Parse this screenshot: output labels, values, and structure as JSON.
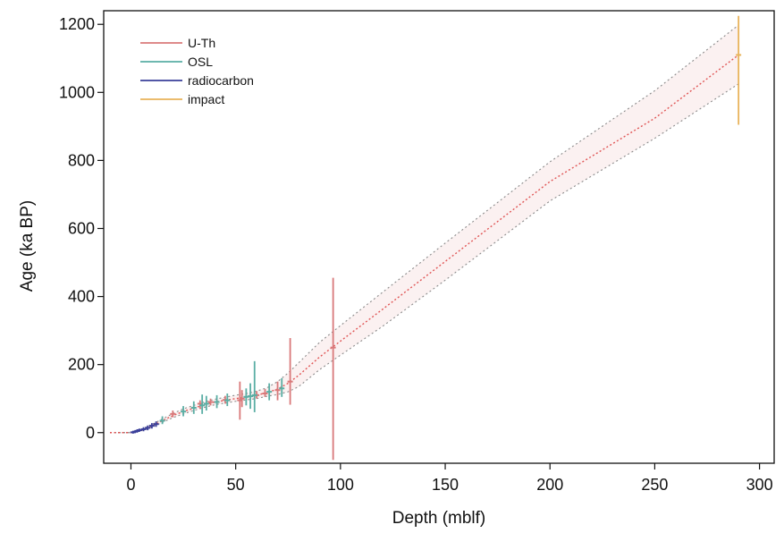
{
  "chart_data": {
    "type": "line",
    "xlabel": "Depth (mblf)",
    "ylabel": "Age (ka BP)",
    "xlim": [
      -13,
      307
    ],
    "ylim": [
      -90,
      1240
    ],
    "xticks": [
      0,
      50,
      100,
      150,
      200,
      250,
      300
    ],
    "yticks": [
      0,
      200,
      400,
      600,
      800,
      1000,
      1200
    ],
    "grid": false,
    "legend_position": "top-left",
    "legend": [
      {
        "label": "U-Th",
        "color": "#d9797a"
      },
      {
        "label": "OSL",
        "color": "#5aaea4"
      },
      {
        "label": "radiocarbon",
        "color": "#3a3f9a"
      },
      {
        "label": "impact",
        "color": "#e8b35a"
      }
    ],
    "model": {
      "median": [
        [
          -10,
          0
        ],
        [
          0,
          0
        ],
        [
          5,
          8
        ],
        [
          10,
          20
        ],
        [
          15,
          35
        ],
        [
          20,
          50
        ],
        [
          25,
          62
        ],
        [
          30,
          72
        ],
        [
          35,
          82
        ],
        [
          40,
          90
        ],
        [
          45,
          95
        ],
        [
          50,
          100
        ],
        [
          55,
          105
        ],
        [
          60,
          110
        ],
        [
          65,
          118
        ],
        [
          70,
          128
        ],
        [
          75,
          145
        ],
        [
          80,
          168
        ],
        [
          85,
          195
        ],
        [
          90,
          222
        ],
        [
          97,
          255
        ],
        [
          120,
          362
        ],
        [
          150,
          503
        ],
        [
          200,
          738
        ],
        [
          250,
          924
        ],
        [
          290,
          1110
        ]
      ],
      "upper": [
        [
          -10,
          0
        ],
        [
          0,
          0
        ],
        [
          5,
          10
        ],
        [
          10,
          24
        ],
        [
          15,
          40
        ],
        [
          20,
          56
        ],
        [
          25,
          70
        ],
        [
          30,
          80
        ],
        [
          35,
          90
        ],
        [
          40,
          98
        ],
        [
          45,
          104
        ],
        [
          50,
          110
        ],
        [
          55,
          115
        ],
        [
          60,
          122
        ],
        [
          65,
          132
        ],
        [
          70,
          150
        ],
        [
          75,
          175
        ],
        [
          80,
          205
        ],
        [
          85,
          235
        ],
        [
          90,
          265
        ],
        [
          97,
          300
        ],
        [
          120,
          412
        ],
        [
          150,
          557
        ],
        [
          200,
          796
        ],
        [
          250,
          1005
        ],
        [
          290,
          1198
        ]
      ],
      "lower": [
        [
          -10,
          0
        ],
        [
          0,
          0
        ],
        [
          5,
          6
        ],
        [
          10,
          16
        ],
        [
          15,
          30
        ],
        [
          20,
          44
        ],
        [
          25,
          55
        ],
        [
          30,
          65
        ],
        [
          35,
          74
        ],
        [
          40,
          82
        ],
        [
          45,
          87
        ],
        [
          50,
          92
        ],
        [
          55,
          96
        ],
        [
          60,
          100
        ],
        [
          65,
          107
        ],
        [
          70,
          112
        ],
        [
          75,
          120
        ],
        [
          80,
          135
        ],
        [
          85,
          160
        ],
        [
          90,
          185
        ],
        [
          97,
          215
        ],
        [
          120,
          312
        ],
        [
          150,
          448
        ],
        [
          200,
          681
        ],
        [
          250,
          865
        ],
        [
          290,
          1025
        ]
      ]
    },
    "series": [
      {
        "name": "U-Th",
        "color": "#d9797a",
        "points": [
          {
            "x": 52,
            "y": 95,
            "low": 38,
            "high": 150
          },
          {
            "x": 53,
            "y": 100,
            "low": 75,
            "high": 125
          },
          {
            "x": 70,
            "y": 125,
            "low": 95,
            "high": 150
          },
          {
            "x": 76,
            "y": 150,
            "low": 82,
            "high": 278
          },
          {
            "x": 96.5,
            "y": 250,
            "low": -80,
            "high": 455
          },
          {
            "x": 33,
            "y": 85,
            "low": 70,
            "high": 95
          },
          {
            "x": 38,
            "y": 90,
            "low": 80,
            "high": 100
          },
          {
            "x": 20,
            "y": 55,
            "low": 45,
            "high": 65
          },
          {
            "x": 45,
            "y": 96,
            "low": 85,
            "high": 108
          },
          {
            "x": 60,
            "y": 110,
            "low": 100,
            "high": 122
          },
          {
            "x": 64,
            "y": 115,
            "low": 105,
            "high": 128
          }
        ]
      },
      {
        "name": "OSL",
        "color": "#5aaea4",
        "points": [
          {
            "x": 15,
            "y": 35,
            "low": 25,
            "high": 48
          },
          {
            "x": 25,
            "y": 62,
            "low": 48,
            "high": 78
          },
          {
            "x": 30,
            "y": 73,
            "low": 55,
            "high": 92
          },
          {
            "x": 34,
            "y": 80,
            "low": 55,
            "high": 112
          },
          {
            "x": 36,
            "y": 85,
            "low": 65,
            "high": 108
          },
          {
            "x": 41,
            "y": 90,
            "low": 72,
            "high": 110
          },
          {
            "x": 46,
            "y": 95,
            "low": 78,
            "high": 115
          },
          {
            "x": 55,
            "y": 105,
            "low": 80,
            "high": 130
          },
          {
            "x": 57,
            "y": 107,
            "low": 70,
            "high": 145
          },
          {
            "x": 59,
            "y": 110,
            "low": 60,
            "high": 210
          },
          {
            "x": 66,
            "y": 120,
            "low": 95,
            "high": 145
          },
          {
            "x": 72,
            "y": 130,
            "low": 105,
            "high": 160
          }
        ]
      },
      {
        "name": "radiocarbon",
        "color": "#3a3f9a",
        "points": [
          {
            "x": 1,
            "y": 1,
            "low": -3,
            "high": 5
          },
          {
            "x": 2,
            "y": 3,
            "low": -1,
            "high": 7
          },
          {
            "x": 3,
            "y": 5,
            "low": 0,
            "high": 10
          },
          {
            "x": 4,
            "y": 7,
            "low": 2,
            "high": 12
          },
          {
            "x": 6,
            "y": 10,
            "low": 4,
            "high": 16
          },
          {
            "x": 8,
            "y": 14,
            "low": 7,
            "high": 21
          },
          {
            "x": 10,
            "y": 20,
            "low": 12,
            "high": 28
          },
          {
            "x": 12,
            "y": 25,
            "low": 17,
            "high": 33
          }
        ]
      },
      {
        "name": "impact",
        "color": "#e8b35a",
        "points": [
          {
            "x": 290,
            "y": 1110,
            "low": 905,
            "high": 1225
          }
        ]
      }
    ]
  }
}
